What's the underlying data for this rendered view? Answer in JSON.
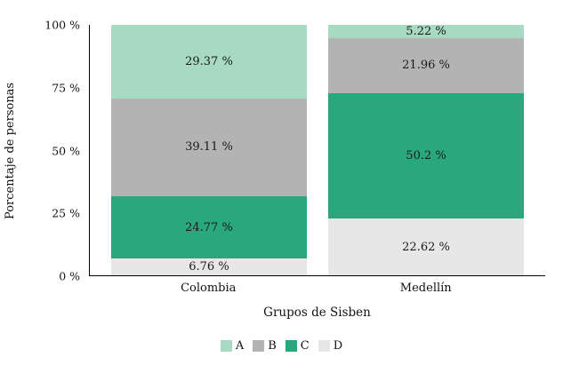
{
  "chart_data": {
    "type": "bar",
    "stacked": true,
    "orientation": "vertical",
    "title": "",
    "xlabel": "Grupos de Sisben",
    "ylabel": "Porcentaje de personas",
    "categories": [
      "Colombia",
      "Medellín"
    ],
    "series": [
      {
        "name": "A",
        "color": "#a7d9c3",
        "values": [
          29.37,
          5.22
        ]
      },
      {
        "name": "B",
        "color": "#b3b3b3",
        "values": [
          39.11,
          21.96
        ]
      },
      {
        "name": "C",
        "color": "#29a87e",
        "values": [
          24.77,
          50.2
        ]
      },
      {
        "name": "D",
        "color": "#e7e7e7",
        "values": [
          6.76,
          22.62
        ]
      }
    ],
    "segment_labels": [
      [
        "29.37 %",
        "39.11 %",
        "24.77 %",
        "6.76 %"
      ],
      [
        "5.22 %",
        "21.96 %",
        "50.2 %",
        "22.62 %"
      ]
    ],
    "yticks": [
      {
        "value": 100,
        "label": "100 %"
      },
      {
        "value": 75,
        "label": "75 %"
      },
      {
        "value": 50,
        "label": "50 %"
      },
      {
        "value": 25,
        "label": "25 %"
      },
      {
        "value": 0,
        "label": "0 %"
      }
    ],
    "ylim": [
      0,
      100
    ],
    "grid": false,
    "legend": [
      "A",
      "B",
      "C",
      "D"
    ],
    "legend_position": "bottom",
    "axis_color": "#000000",
    "text_color": "#1a1a1a"
  }
}
